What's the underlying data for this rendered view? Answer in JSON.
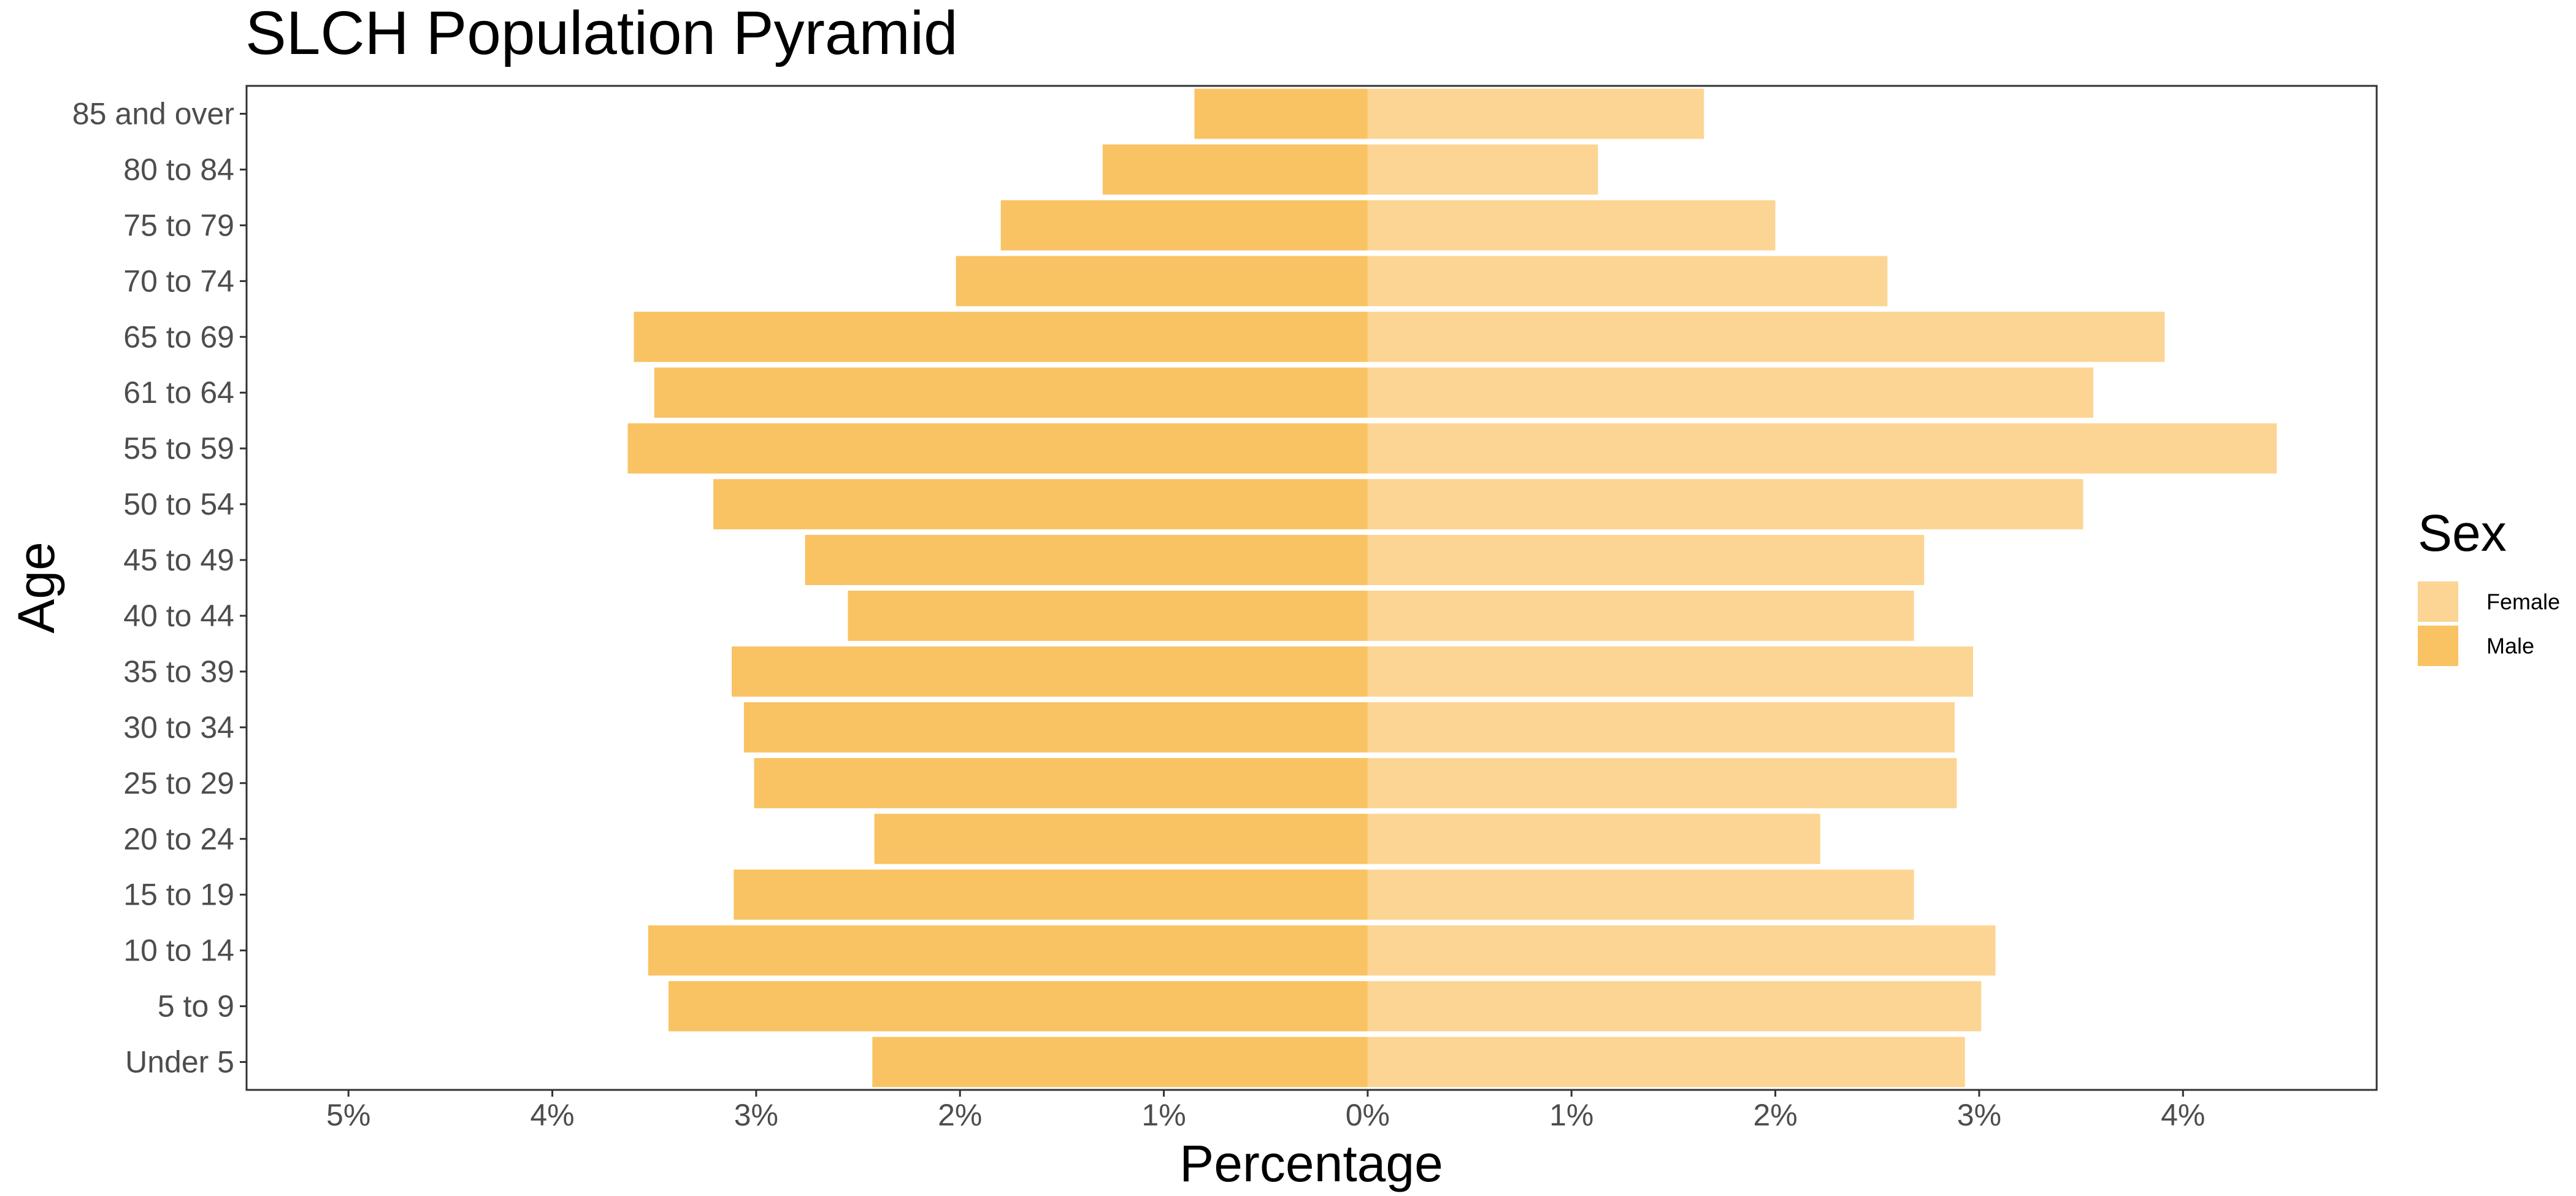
{
  "chart_data": {
    "type": "bar",
    "orientation": "horizontal",
    "title": "SLCH Population Pyramid",
    "xlabel": "Percentage",
    "ylabel": "Age",
    "categories": [
      "Under 5",
      "5 to 9",
      "10 to 14",
      "15 to 19",
      "20 to 24",
      "25 to 29",
      "30 to 34",
      "35 to 39",
      "40 to 44",
      "45 to 49",
      "50 to 54",
      "55 to 59",
      "61 to 64",
      "65 to 69",
      "70 to 74",
      "75 to 79",
      "80 to 84",
      "85 and over"
    ],
    "series": [
      {
        "name": "Female",
        "color": "#fcd594",
        "values": [
          2.93,
          3.01,
          3.08,
          2.68,
          2.22,
          2.89,
          2.88,
          2.97,
          2.68,
          2.73,
          3.51,
          4.46,
          3.56,
          3.91,
          2.55,
          2.0,
          1.13,
          1.65
        ]
      },
      {
        "name": "Male",
        "color": "#f9c363",
        "values": [
          -2.43,
          -3.43,
          -3.53,
          -3.11,
          -2.42,
          -3.01,
          -3.06,
          -3.12,
          -2.55,
          -2.76,
          -3.21,
          -3.63,
          -3.5,
          -3.6,
          -2.02,
          -1.8,
          -1.3,
          -0.85
        ]
      }
    ],
    "xlim": [
      -5.5,
      4.95
    ],
    "xticks": [
      -5,
      -4,
      -3,
      -2,
      -1,
      0,
      1,
      2,
      3,
      4
    ],
    "xtick_labels": [
      "5%",
      "4%",
      "3%",
      "2%",
      "1%",
      "0%",
      "1%",
      "2%",
      "3%",
      "4%"
    ],
    "legend": {
      "title": "Sex",
      "position": "right",
      "entries": [
        "Female",
        "Male"
      ]
    },
    "grid": false
  }
}
